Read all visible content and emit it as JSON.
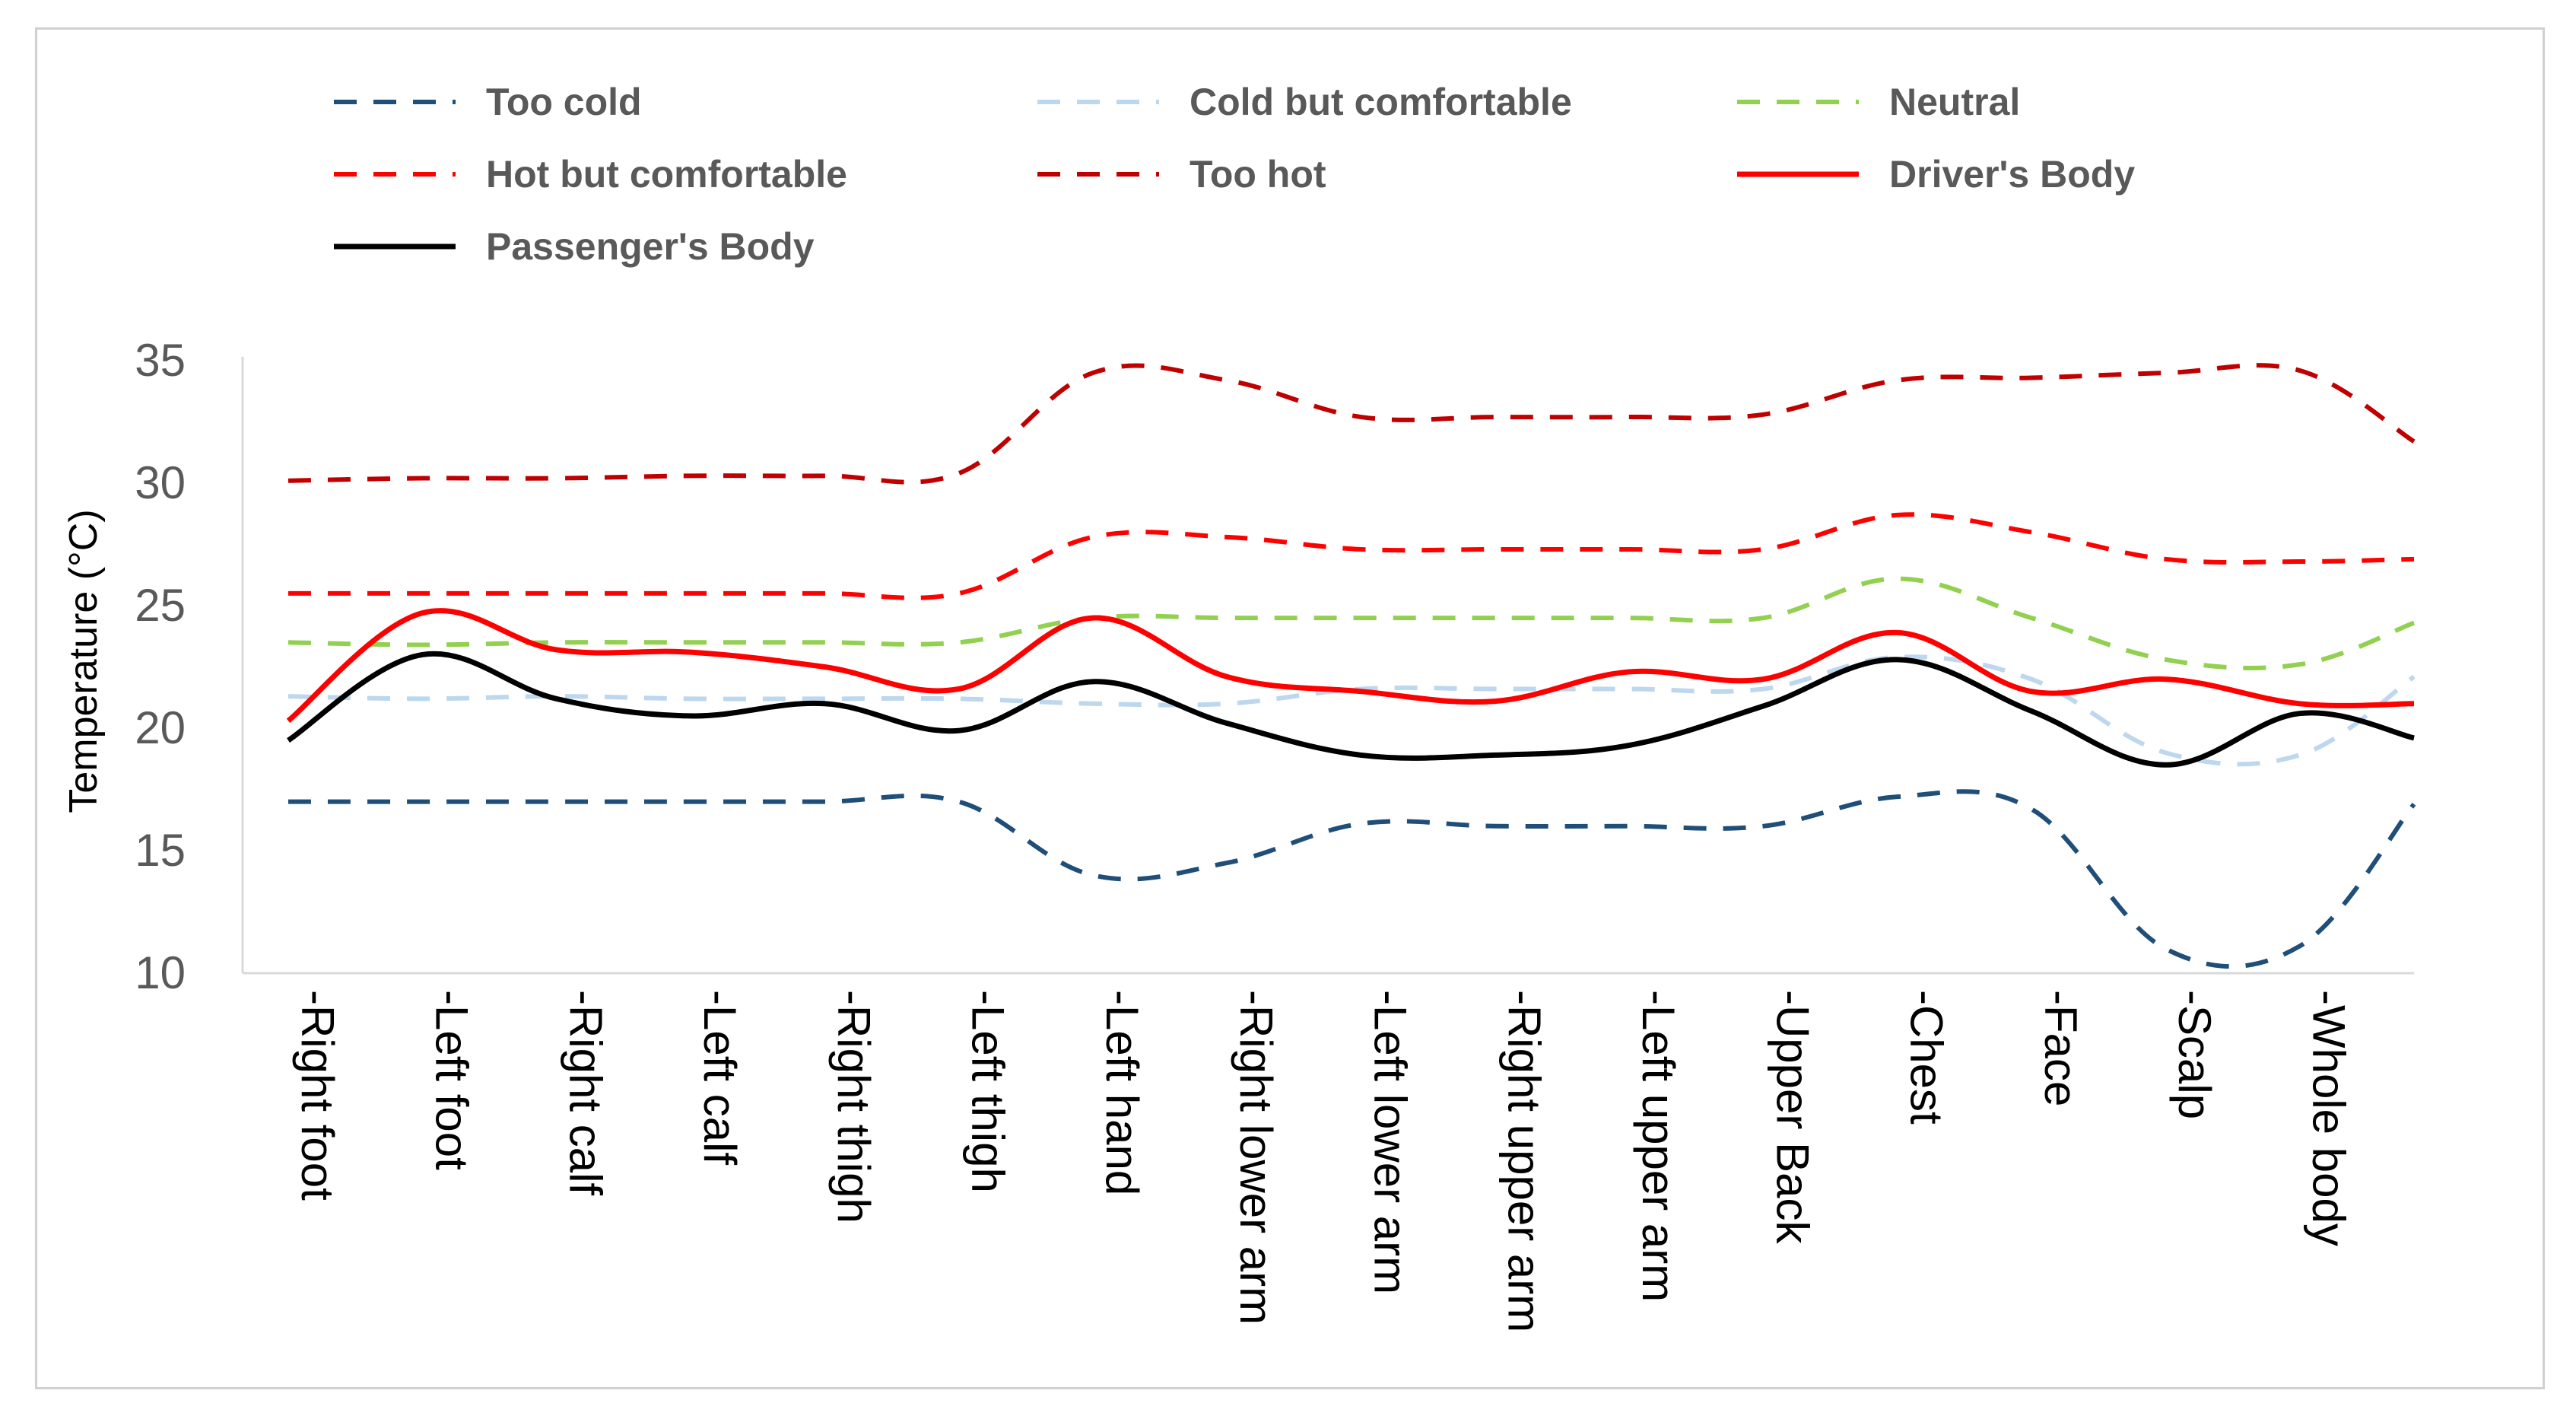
{
  "chart_data": {
    "type": "line",
    "title": "",
    "xlabel": "",
    "ylabel": "Temperature (°C)",
    "ylim": [
      10,
      35
    ],
    "yticks": [
      10,
      15,
      20,
      25,
      30,
      35
    ],
    "grid": false,
    "legend_position": "top",
    "categories": [
      "-Right foot",
      "-Left foot",
      "-Right calf",
      "-Left calf",
      "-Right thigh",
      "-Left thigh",
      "-Left hand",
      "-Right lower arm",
      "-Left lower arm",
      "-Right upper arm",
      "-Left upper arm",
      "-Upper Back",
      "-Chest",
      "-Face",
      "-Scalp",
      "-Whole body"
    ],
    "series": [
      {
        "name": "Too cold",
        "color": "#1f4e79",
        "dash": "dashed",
        "values": [
          17.0,
          17.0,
          17.0,
          17.0,
          17.0,
          17.0,
          14.0,
          14.5,
          16.1,
          16.0,
          16.0,
          16.0,
          17.2,
          16.7,
          11.0,
          11.1
        ],
        "end_value": 16.9
      },
      {
        "name": "Cold but comfortable",
        "color": "#bdd7ee",
        "dash": "dashed",
        "values": [
          21.3,
          21.2,
          21.3,
          21.2,
          21.2,
          21.2,
          21.0,
          21.0,
          21.6,
          21.6,
          21.6,
          21.6,
          22.9,
          22.0,
          19.0,
          18.9
        ],
        "end_value": 22.1
      },
      {
        "name": "Neutral",
        "color": "#92d050",
        "dash": "dashed",
        "values": [
          23.5,
          23.4,
          23.5,
          23.5,
          23.5,
          23.5,
          24.5,
          24.5,
          24.5,
          24.5,
          24.5,
          24.5,
          26.1,
          24.5,
          22.8,
          22.6
        ],
        "end_value": 24.3
      },
      {
        "name": "Hot but comfortable",
        "color": "#ff0000",
        "dash": "dashed",
        "values": [
          25.5,
          25.5,
          25.5,
          25.5,
          25.5,
          25.5,
          27.8,
          27.8,
          27.3,
          27.3,
          27.3,
          27.3,
          28.7,
          28.0,
          26.9,
          26.8
        ],
        "end_value": 26.9
      },
      {
        "name": "Too hot",
        "color": "#c00000",
        "dash": "dashed",
        "values": [
          30.1,
          30.2,
          30.2,
          30.3,
          30.3,
          30.4,
          34.5,
          34.2,
          32.7,
          32.7,
          32.7,
          32.8,
          34.2,
          34.3,
          34.5,
          34.6
        ],
        "end_value": 31.7
      },
      {
        "name": "Driver's Body",
        "color": "#ff0000",
        "dash": "solid",
        "values": [
          20.3,
          24.7,
          23.2,
          23.1,
          22.5,
          21.6,
          24.5,
          22.1,
          21.5,
          21.1,
          22.3,
          22.0,
          23.9,
          21.5,
          22.0,
          21.0
        ],
        "end_value": 21.0
      },
      {
        "name": "Passenger's Body",
        "color": "#000000",
        "dash": "solid",
        "values": [
          19.5,
          23.0,
          21.2,
          20.5,
          21.0,
          19.9,
          21.9,
          20.2,
          18.9,
          18.9,
          19.3,
          20.9,
          22.8,
          20.7,
          18.5,
          20.6
        ],
        "end_value": 19.6
      }
    ]
  }
}
